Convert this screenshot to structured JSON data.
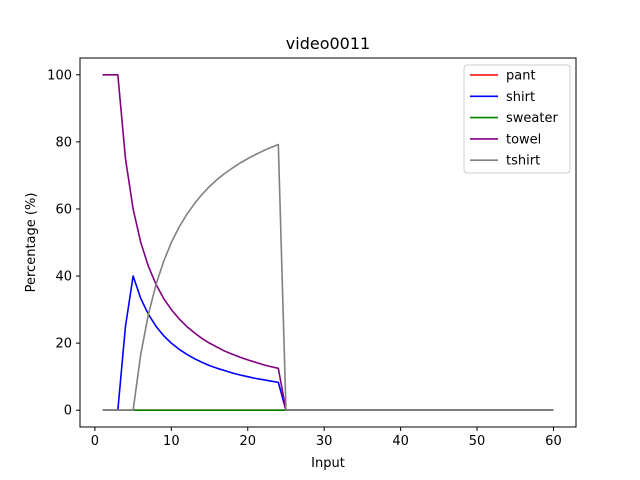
{
  "chart_data": {
    "type": "line",
    "title": "video0011",
    "xlabel": "Input",
    "ylabel": "Percentage (%)",
    "xlim": [
      -1.95,
      62.95
    ],
    "ylim": [
      -5,
      105
    ],
    "xticks": [
      0,
      10,
      20,
      30,
      40,
      50,
      60
    ],
    "yticks": [
      0,
      20,
      40,
      60,
      80,
      100
    ],
    "grid": false,
    "legend_position": "top-right",
    "x": [
      1,
      2,
      3,
      4,
      5,
      6,
      7,
      8,
      9,
      10,
      11,
      12,
      13,
      14,
      15,
      16,
      17,
      18,
      19,
      20,
      21,
      22,
      23,
      24,
      25,
      26,
      27,
      28,
      29,
      30,
      31,
      32,
      33,
      34,
      35,
      36,
      37,
      38,
      39,
      40,
      41,
      42,
      43,
      44,
      45,
      46,
      47,
      48,
      49,
      50,
      51,
      52,
      53,
      54,
      55,
      56,
      57,
      58,
      59,
      60
    ],
    "series": [
      {
        "name": "pant",
        "color": "#ff0000",
        "values": [
          0,
          0,
          0,
          0,
          0,
          0,
          0,
          0,
          0,
          0,
          0,
          0,
          0,
          0,
          0,
          0,
          0,
          0,
          0,
          0,
          0,
          0,
          0,
          0,
          0,
          0,
          0,
          0,
          0,
          0,
          0,
          0,
          0,
          0,
          0,
          0,
          0,
          0,
          0,
          0,
          0,
          0,
          0,
          0,
          0,
          0,
          0,
          0,
          0,
          0,
          0,
          0,
          0,
          0,
          0,
          0,
          0,
          0,
          0,
          0
        ]
      },
      {
        "name": "shirt",
        "color": "#0000ff",
        "values": [
          0,
          0,
          0,
          25,
          40,
          33.3,
          28.6,
          25,
          22.2,
          20,
          18.2,
          16.7,
          15.4,
          14.3,
          13.3,
          12.5,
          11.8,
          11.1,
          10.5,
          10,
          9.5,
          9.1,
          8.7,
          8.3,
          0,
          0,
          0,
          0,
          0,
          0,
          0,
          0,
          0,
          0,
          0,
          0,
          0,
          0,
          0,
          0,
          0,
          0,
          0,
          0,
          0,
          0,
          0,
          0,
          0,
          0,
          0,
          0,
          0,
          0,
          0,
          0,
          0,
          0,
          0,
          0
        ]
      },
      {
        "name": "sweater",
        "color": "#008000",
        "values": [
          0,
          0,
          0,
          0,
          0,
          0,
          0,
          0,
          0,
          0,
          0,
          0,
          0,
          0,
          0,
          0,
          0,
          0,
          0,
          0,
          0,
          0,
          0,
          0,
          0,
          0,
          0,
          0,
          0,
          0,
          0,
          0,
          0,
          0,
          0,
          0,
          0,
          0,
          0,
          0,
          0,
          0,
          0,
          0,
          0,
          0,
          0,
          0,
          0,
          0,
          0,
          0,
          0,
          0,
          0,
          0,
          0,
          0,
          0,
          0
        ]
      },
      {
        "name": "towel",
        "color": "#800080",
        "values": [
          100,
          100,
          100,
          75,
          60,
          50,
          42.9,
          37.5,
          33.3,
          30,
          27.3,
          25,
          23.1,
          21.4,
          20,
          18.8,
          17.6,
          16.7,
          15.8,
          15,
          14.3,
          13.6,
          13,
          12.5,
          0,
          0,
          0,
          0,
          0,
          0,
          0,
          0,
          0,
          0,
          0,
          0,
          0,
          0,
          0,
          0,
          0,
          0,
          0,
          0,
          0,
          0,
          0,
          0,
          0,
          0,
          0,
          0,
          0,
          0,
          0,
          0,
          0,
          0,
          0,
          0
        ]
      },
      {
        "name": "tshirt",
        "color": "#808080",
        "values": [
          0,
          0,
          0,
          0,
          0,
          16.7,
          28.6,
          37.5,
          44.4,
          50,
          54.5,
          58.3,
          61.5,
          64.3,
          66.7,
          68.8,
          70.6,
          72.2,
          73.7,
          75,
          76.2,
          77.3,
          78.3,
          79.2,
          0,
          0,
          0,
          0,
          0,
          0,
          0,
          0,
          0,
          0,
          0,
          0,
          0,
          0,
          0,
          0,
          0,
          0,
          0,
          0,
          0,
          0,
          0,
          0,
          0,
          0,
          0,
          0,
          0,
          0,
          0,
          0,
          0,
          0,
          0,
          0
        ]
      }
    ]
  }
}
